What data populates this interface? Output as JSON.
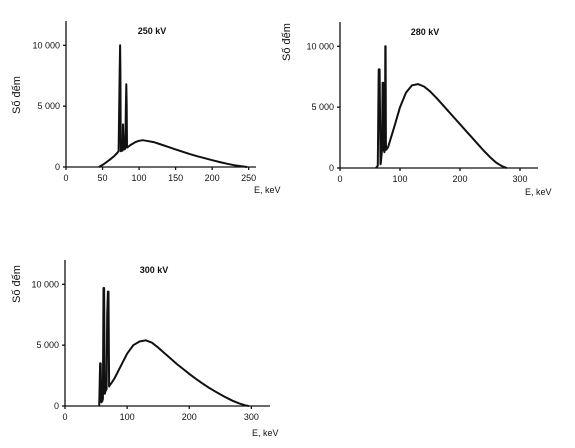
{
  "chart_data": [
    {
      "type": "line",
      "title": "250 kV",
      "ylabel": "Số đếm",
      "xlabel": "E, keV",
      "xlim": [
        0,
        260
      ],
      "ylim": [
        0,
        12000
      ],
      "xticks": [
        0,
        50,
        100,
        150,
        200,
        250
      ],
      "yticks": [
        0,
        5000,
        10000
      ],
      "xtick_labels": [
        "0",
        "50",
        "100",
        "150",
        "200",
        "250"
      ],
      "ytick_labels": [
        "0",
        "5 000",
        "10 000"
      ],
      "series": [
        {
          "x": [
            45,
            52,
            60,
            66,
            70,
            72,
            73.5,
            74,
            74.5,
            75,
            76,
            77.5,
            78,
            79,
            80,
            81,
            82,
            82.5,
            83,
            83.5,
            84,
            85,
            88,
            95,
            100,
            105,
            110,
            120,
            130,
            140,
            150,
            160,
            170,
            180,
            190,
            200,
            210,
            220,
            230,
            240,
            248
          ],
          "y": [
            0,
            250,
            600,
            900,
            1150,
            1300,
            8000,
            10000,
            8000,
            1300,
            1350,
            1350,
            3500,
            1450,
            1450,
            1500,
            5000,
            6800,
            5000,
            1600,
            1600,
            1650,
            1800,
            2050,
            2150,
            2200,
            2150,
            2050,
            1850,
            1650,
            1450,
            1250,
            1050,
            880,
            720,
            560,
            410,
            270,
            150,
            60,
            0
          ]
        }
      ]
    },
    {
      "type": "line",
      "title": "280 kV",
      "ylabel": "Số đếm",
      "xlabel": "E, keV",
      "xlim": [
        0,
        330
      ],
      "ylim": [
        0,
        12000
      ],
      "xticks": [
        0,
        100,
        200,
        300
      ],
      "yticks": [
        0,
        5000,
        10000
      ],
      "xtick_labels": [
        "0",
        "100",
        "200",
        "300"
      ],
      "ytick_labels": [
        "0",
        "5 000",
        "10 000"
      ],
      "series": [
        {
          "x": [
            60,
            63,
            64.5,
            66,
            67.5,
            68,
            70,
            71,
            72,
            73,
            74,
            75,
            75.5,
            76,
            76.5,
            77,
            80,
            90,
            100,
            110,
            120,
            130,
            140,
            150,
            160,
            170,
            180,
            190,
            200,
            210,
            220,
            230,
            240,
            250,
            260,
            270,
            278
          ],
          "y": [
            0,
            200,
            8100,
            8100,
            300,
            400,
            1500,
            7000,
            7000,
            1500,
            1300,
            1600,
            10000,
            10000,
            2000,
            1500,
            1700,
            3300,
            5000,
            6200,
            6800,
            6900,
            6700,
            6300,
            5800,
            5250,
            4700,
            4150,
            3600,
            3050,
            2500,
            1950,
            1400,
            900,
            450,
            150,
            0
          ]
        }
      ]
    },
    {
      "type": "line",
      "title": "300 kV",
      "ylabel": "Số đếm",
      "xlabel": "E, keV",
      "xlim": [
        0,
        330
      ],
      "ylim": [
        0,
        12000
      ],
      "xticks": [
        0,
        100,
        200,
        300
      ],
      "yticks": [
        0,
        5000,
        10000
      ],
      "xtick_labels": [
        "0",
        "100",
        "200",
        "300"
      ],
      "ytick_labels": [
        "0",
        "5 000",
        "10 000"
      ],
      "series": [
        {
          "x": [
            55,
            56.5,
            57.5,
            58.5,
            60,
            61,
            62,
            63,
            64,
            65,
            67,
            68,
            69,
            70,
            71,
            72,
            75,
            80,
            90,
            100,
            110,
            120,
            130,
            140,
            150,
            160,
            170,
            180,
            190,
            200,
            210,
            220,
            230,
            240,
            250,
            260,
            270,
            280,
            290,
            296
          ],
          "y": [
            0,
            3500,
            3500,
            300,
            400,
            600,
            9700,
            9700,
            1000,
            1200,
            1400,
            7500,
            9400,
            9400,
            1600,
            1700,
            1900,
            2300,
            3300,
            4300,
            5000,
            5300,
            5400,
            5200,
            4800,
            4350,
            3900,
            3450,
            3050,
            2650,
            2250,
            1900,
            1550,
            1250,
            950,
            680,
            430,
            220,
            60,
            0
          ]
        }
      ]
    }
  ]
}
